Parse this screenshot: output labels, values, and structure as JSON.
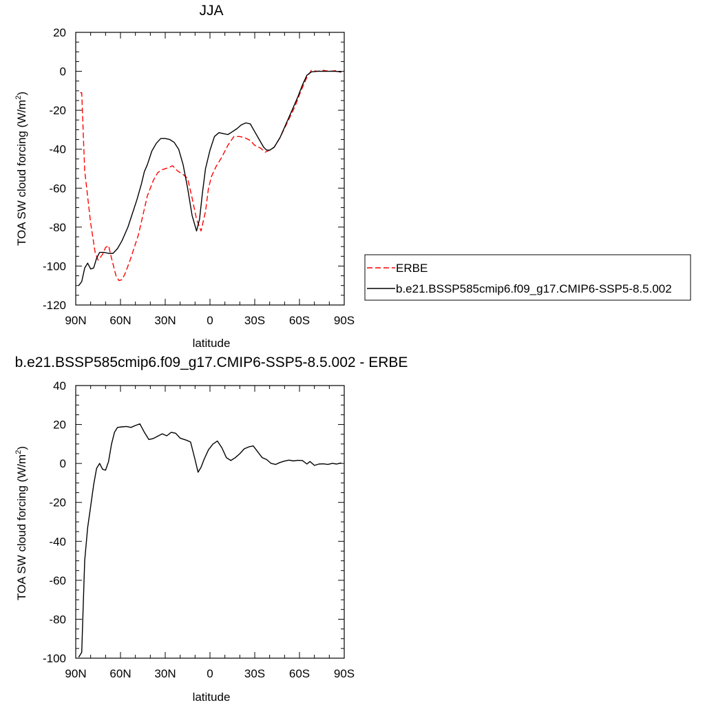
{
  "chart_data": [
    {
      "type": "line",
      "title": "JJA",
      "xlabel": "latitude",
      "ylabel": "TOA SW cloud forcing (W/m",
      "ylabel_sup": "2",
      "ylabel_close": ")",
      "xlim": [
        90,
        -90
      ],
      "ylim": [
        -120,
        20
      ],
      "x_ticks": [
        {
          "value": 90,
          "label": "90N"
        },
        {
          "value": 60,
          "label": "60N"
        },
        {
          "value": 30,
          "label": "30N"
        },
        {
          "value": 0,
          "label": "0"
        },
        {
          "value": -30,
          "label": "30S"
        },
        {
          "value": -60,
          "label": "60S"
        },
        {
          "value": -90,
          "label": "90S"
        }
      ],
      "y_ticks": [
        20,
        0,
        -20,
        -40,
        -60,
        -80,
        -100,
        -120
      ],
      "grid": false,
      "legend_position": "right",
      "series": [
        {
          "name": "ERBE",
          "color": "#ff0000",
          "dash": true,
          "points": [
            [
              87,
              -11
            ],
            [
              86,
              -11
            ],
            [
              84,
              -51
            ],
            [
              80,
              -78
            ],
            [
              77,
              -93
            ],
            [
              75,
              -97
            ],
            [
              72,
              -94
            ],
            [
              70,
              -90.5
            ],
            [
              68,
              -89.5
            ],
            [
              66,
              -96
            ],
            [
              63,
              -105
            ],
            [
              61,
              -107.5
            ],
            [
              59,
              -107
            ],
            [
              57,
              -104
            ],
            [
              54,
              -98
            ],
            [
              51,
              -91
            ],
            [
              48,
              -84
            ],
            [
              45,
              -74
            ],
            [
              42,
              -64
            ],
            [
              38,
              -56
            ],
            [
              35,
              -52
            ],
            [
              32,
              -50.5
            ],
            [
              28,
              -49.5
            ],
            [
              25,
              -48.5
            ],
            [
              22,
              -51
            ],
            [
              18,
              -53
            ],
            [
              15,
              -55
            ],
            [
              12,
              -65
            ],
            [
              9,
              -76
            ],
            [
              6,
              -82
            ],
            [
              3,
              -72
            ],
            [
              1,
              -60
            ],
            [
              -1,
              -54
            ],
            [
              -4,
              -49
            ],
            [
              -8,
              -44
            ],
            [
              -12,
              -38
            ],
            [
              -16,
              -33.5
            ],
            [
              -20,
              -33.5
            ],
            [
              -23,
              -34
            ],
            [
              -27,
              -35.5
            ],
            [
              -30,
              -38
            ],
            [
              -34,
              -39.5
            ],
            [
              -37,
              -41.5
            ],
            [
              -40,
              -40.5
            ],
            [
              -43,
              -39
            ],
            [
              -47,
              -34
            ],
            [
              -52,
              -26
            ],
            [
              -57,
              -18
            ],
            [
              -61,
              -10
            ],
            [
              -65,
              -3
            ],
            [
              -68,
              0.5
            ],
            [
              -72,
              0
            ],
            [
              -76,
              0.5
            ],
            [
              -80,
              0
            ],
            [
              -84,
              0.3
            ],
            [
              -88,
              -0.5
            ]
          ]
        },
        {
          "name": "b.e21.BSSP585cmip6.f09_g17.CMIP6-SSP5-8.5.002",
          "color": "#000000",
          "dash": false,
          "points": [
            [
              88,
              -110
            ],
            [
              86,
              -108
            ],
            [
              84,
              -101
            ],
            [
              82,
              -98.5
            ],
            [
              80,
              -101.5
            ],
            [
              78,
              -101
            ],
            [
              76,
              -96
            ],
            [
              74,
              -93
            ],
            [
              71,
              -93
            ],
            [
              68,
              -93.5
            ],
            [
              65,
              -93.5
            ],
            [
              62,
              -91
            ],
            [
              59,
              -87
            ],
            [
              55,
              -80
            ],
            [
              52,
              -73
            ],
            [
              49,
              -66
            ],
            [
              46,
              -58
            ],
            [
              44,
              -51.5
            ],
            [
              42,
              -48
            ],
            [
              39,
              -41
            ],
            [
              36,
              -37
            ],
            [
              33,
              -34.5
            ],
            [
              30,
              -34.5
            ],
            [
              27,
              -35
            ],
            [
              24,
              -36.5
            ],
            [
              21,
              -40
            ],
            [
              18,
              -48
            ],
            [
              15,
              -60
            ],
            [
              12,
              -74
            ],
            [
              9,
              -82
            ],
            [
              7,
              -76
            ],
            [
              5,
              -62
            ],
            [
              3,
              -50
            ],
            [
              0,
              -40.5
            ],
            [
              -3,
              -33.5
            ],
            [
              -6,
              -31.5
            ],
            [
              -9,
              -32
            ],
            [
              -12,
              -32.5
            ],
            [
              -15,
              -31
            ],
            [
              -18,
              -29.5
            ],
            [
              -21,
              -27.5
            ],
            [
              -24,
              -26.5
            ],
            [
              -27,
              -27
            ],
            [
              -30,
              -31
            ],
            [
              -33,
              -35
            ],
            [
              -36,
              -39
            ],
            [
              -38,
              -40.5
            ],
            [
              -40,
              -40.5
            ],
            [
              -43,
              -39
            ],
            [
              -47,
              -34
            ],
            [
              -51,
              -27
            ],
            [
              -55,
              -20
            ],
            [
              -59,
              -13
            ],
            [
              -62,
              -7
            ],
            [
              -65,
              -2
            ],
            [
              -68,
              -0.3
            ],
            [
              -72,
              0
            ],
            [
              -76,
              0
            ],
            [
              -80,
              0
            ],
            [
              -84,
              0
            ],
            [
              -88,
              -0.3
            ]
          ]
        }
      ]
    },
    {
      "type": "line",
      "title": "b.e21.BSSP585cmip6.f09_g17.CMIP6-SSP5-8.5.002 - ERBE",
      "xlabel": "latitude",
      "ylabel": "TOA SW cloud forcing (W/m",
      "ylabel_sup": "2",
      "ylabel_close": ")",
      "xlim": [
        90,
        -90
      ],
      "ylim": [
        -100,
        40
      ],
      "x_ticks": [
        {
          "value": 90,
          "label": "90N"
        },
        {
          "value": 60,
          "label": "60N"
        },
        {
          "value": 30,
          "label": "30N"
        },
        {
          "value": 0,
          "label": "0"
        },
        {
          "value": -30,
          "label": "30S"
        },
        {
          "value": -60,
          "label": "60S"
        },
        {
          "value": -90,
          "label": "90S"
        }
      ],
      "y_ticks": [
        40,
        20,
        0,
        -20,
        -40,
        -60,
        -80,
        -100
      ],
      "grid": false,
      "series": [
        {
          "color": "#000000",
          "dash": false,
          "points": [
            [
              88,
              -99.5
            ],
            [
              86,
              -97
            ],
            [
              84,
              -50
            ],
            [
              82,
              -33
            ],
            [
              80,
              -22
            ],
            [
              78,
              -11
            ],
            [
              76,
              -2.5
            ],
            [
              74,
              0
            ],
            [
              72,
              -3
            ],
            [
              70,
              -3.5
            ],
            [
              68,
              1
            ],
            [
              66,
              10
            ],
            [
              64,
              16
            ],
            [
              62,
              18.5
            ],
            [
              59,
              18.8
            ],
            [
              56,
              19
            ],
            [
              53,
              18.5
            ],
            [
              50,
              19.5
            ],
            [
              47,
              20.3
            ],
            [
              44,
              16
            ],
            [
              41,
              12.3
            ],
            [
              38,
              12.8
            ],
            [
              35,
              14
            ],
            [
              32,
              15.2
            ],
            [
              29,
              14.2
            ],
            [
              26,
              16
            ],
            [
              23,
              15.5
            ],
            [
              20,
              13
            ],
            [
              16,
              12
            ],
            [
              13,
              11
            ],
            [
              10,
              2
            ],
            [
              8,
              -4.5
            ],
            [
              6,
              -2
            ],
            [
              4,
              2
            ],
            [
              1,
              7
            ],
            [
              -2,
              10
            ],
            [
              -5,
              11.5
            ],
            [
              -8,
              8
            ],
            [
              -11,
              3
            ],
            [
              -14,
              1.5
            ],
            [
              -17,
              3
            ],
            [
              -20,
              5
            ],
            [
              -23,
              7.5
            ],
            [
              -26,
              8.5
            ],
            [
              -29,
              9
            ],
            [
              -32,
              6
            ],
            [
              -35,
              3
            ],
            [
              -38,
              2
            ],
            [
              -41,
              0
            ],
            [
              -44,
              -0.5
            ],
            [
              -47,
              0.5
            ],
            [
              -50,
              1.2
            ],
            [
              -53,
              1.7
            ],
            [
              -56,
              1.3
            ],
            [
              -59,
              1.6
            ],
            [
              -62,
              1.5
            ],
            [
              -65,
              -0.3
            ],
            [
              -67,
              1
            ],
            [
              -70,
              -1
            ],
            [
              -73,
              -0.3
            ],
            [
              -76,
              -0.2
            ],
            [
              -79,
              -0.5
            ],
            [
              -82,
              0
            ],
            [
              -85,
              -0.3
            ],
            [
              -88,
              0.3
            ]
          ]
        }
      ]
    }
  ]
}
